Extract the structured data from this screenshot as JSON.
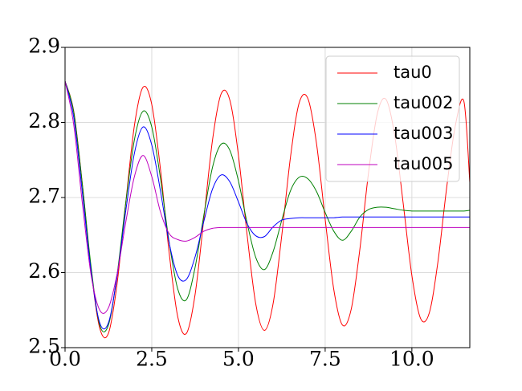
{
  "chart_data": {
    "type": "line",
    "x": [
      0,
      0.25,
      0.5,
      0.75,
      1,
      1.25,
      1.5,
      1.75,
      2,
      2.25,
      2.5,
      2.75,
      3,
      3.25,
      3.5,
      3.75,
      4,
      4.25,
      4.5,
      4.75,
      5,
      5.25,
      5.5,
      5.75,
      6,
      6.25,
      6.5,
      6.75,
      7,
      7.25,
      7.5,
      7.75,
      8,
      8.25,
      8.5,
      8.75,
      9,
      9.25,
      9.5,
      9.75,
      10,
      10.25,
      10.5,
      10.75,
      11,
      11.25,
      11.5,
      11.67
    ],
    "series": [
      {
        "name": "tau0",
        "color": "#ff0000",
        "values": [
          2.855,
          2.815,
          2.717,
          2.604,
          2.526,
          2.519,
          2.585,
          2.693,
          2.796,
          2.847,
          2.824,
          2.738,
          2.627,
          2.541,
          2.519,
          2.571,
          2.671,
          2.776,
          2.838,
          2.83,
          2.756,
          2.65,
          2.558,
          2.523,
          2.559,
          2.65,
          2.754,
          2.826,
          2.832,
          2.772,
          2.671,
          2.577,
          2.53,
          2.551,
          2.631,
          2.733,
          2.811,
          2.831,
          2.784,
          2.692,
          2.596,
          2.539,
          2.546,
          2.614,
          2.712,
          2.795,
          2.828,
          2.72
        ]
      },
      {
        "name": "tau002",
        "color": "#008000",
        "values": [
          2.855,
          2.814,
          2.717,
          2.608,
          2.53,
          2.53,
          2.597,
          2.693,
          2.777,
          2.815,
          2.794,
          2.726,
          2.641,
          2.578,
          2.564,
          2.607,
          2.676,
          2.74,
          2.771,
          2.763,
          2.722,
          2.666,
          2.62,
          2.604,
          2.628,
          2.67,
          2.709,
          2.727,
          2.725,
          2.708,
          2.68,
          2.655,
          2.643,
          2.655,
          2.674,
          2.684,
          2.687,
          2.687,
          2.685,
          2.683,
          2.682,
          2.682,
          2.682,
          2.682,
          2.682,
          2.682,
          2.682,
          2.683
        ]
      },
      {
        "name": "tau003",
        "color": "#0000ff",
        "values": [
          2.855,
          2.807,
          2.706,
          2.602,
          2.533,
          2.533,
          2.595,
          2.682,
          2.759,
          2.794,
          2.77,
          2.709,
          2.64,
          2.596,
          2.591,
          2.621,
          2.668,
          2.711,
          2.73,
          2.721,
          2.694,
          2.665,
          2.649,
          2.648,
          2.661,
          2.67,
          2.672,
          2.673,
          2.673,
          2.673,
          2.673,
          2.673,
          2.674,
          2.674,
          2.674,
          2.674,
          2.674,
          2.674,
          2.674,
          2.674,
          2.674,
          2.674,
          2.674,
          2.674,
          2.674,
          2.674,
          2.674,
          2.674
        ]
      },
      {
        "name": "tau005",
        "color": "#bf00bf",
        "values": [
          2.855,
          2.797,
          2.692,
          2.597,
          2.55,
          2.553,
          2.598,
          2.667,
          2.728,
          2.756,
          2.728,
          2.681,
          2.652,
          2.644,
          2.642,
          2.647,
          2.655,
          2.659,
          2.66,
          2.66,
          2.66,
          2.66,
          2.66,
          2.66,
          2.66,
          2.66,
          2.66,
          2.66,
          2.66,
          2.66,
          2.66,
          2.66,
          2.66,
          2.66,
          2.66,
          2.66,
          2.66,
          2.66,
          2.66,
          2.66,
          2.66,
          2.66,
          2.66,
          2.66,
          2.66,
          2.66,
          2.66,
          2.66
        ]
      }
    ],
    "xlim": [
      0,
      11.67
    ],
    "ylim": [
      2.5,
      2.9
    ],
    "xticks": [
      {
        "value": 0,
        "label": "0.0"
      },
      2.5,
      {
        "value": 5,
        "label": "5.0"
      },
      7.5,
      {
        "value": 10,
        "label": "10.0"
      }
    ],
    "yticks": [
      2.5,
      2.6,
      2.7,
      2.8,
      2.9
    ],
    "grid": true,
    "legend": "upper right"
  }
}
